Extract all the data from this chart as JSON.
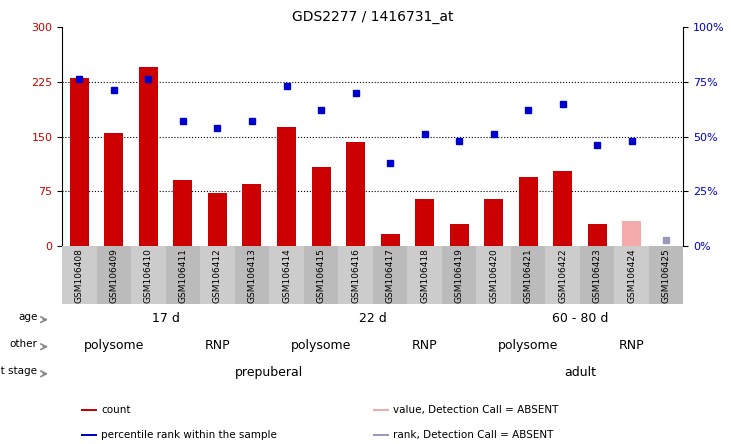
{
  "title": "GDS2277 / 1416731_at",
  "samples": [
    "GSM106408",
    "GSM106409",
    "GSM106410",
    "GSM106411",
    "GSM106412",
    "GSM106413",
    "GSM106414",
    "GSM106415",
    "GSM106416",
    "GSM106417",
    "GSM106418",
    "GSM106419",
    "GSM106420",
    "GSM106421",
    "GSM106422",
    "GSM106423",
    "GSM106424",
    "GSM106425"
  ],
  "bar_values": [
    230,
    155,
    245,
    90,
    73,
    85,
    163,
    108,
    143,
    17,
    65,
    30,
    65,
    95,
    103,
    30,
    35,
    null
  ],
  "bar_absent": [
    false,
    false,
    false,
    false,
    false,
    false,
    false,
    false,
    false,
    false,
    false,
    false,
    false,
    false,
    false,
    false,
    true,
    true
  ],
  "bar_color_normal": "#cc0000",
  "bar_color_absent": "#f4aaaa",
  "dot_ranks": [
    76,
    71,
    76,
    57,
    54,
    57,
    73,
    62,
    70,
    38,
    51,
    48,
    51,
    62,
    65,
    46,
    48,
    3
  ],
  "dot_absent": [
    false,
    false,
    false,
    false,
    false,
    false,
    false,
    false,
    false,
    false,
    false,
    false,
    false,
    false,
    false,
    false,
    false,
    true
  ],
  "dot_color_normal": "#0000cc",
  "dot_color_absent": "#9999bb",
  "ylim_left": [
    0,
    300
  ],
  "ylim_right": [
    0,
    100
  ],
  "yticks_left": [
    0,
    75,
    150,
    225,
    300
  ],
  "ytick_labels_left": [
    "0",
    "75",
    "150",
    "225",
    "300"
  ],
  "yticks_right": [
    0,
    25,
    50,
    75,
    100
  ],
  "ytick_labels_right": [
    "0%",
    "25%",
    "50%",
    "75%",
    "100%"
  ],
  "hlines": [
    75,
    150,
    225
  ],
  "age_groups": [
    {
      "label": "17 d",
      "start": 0,
      "end": 5,
      "color": "#aaddaa"
    },
    {
      "label": "22 d",
      "start": 6,
      "end": 11,
      "color": "#66cc66"
    },
    {
      "label": "60 - 80 d",
      "start": 12,
      "end": 17,
      "color": "#44bb44"
    }
  ],
  "other_groups": [
    {
      "label": "polysome",
      "start": 0,
      "end": 2,
      "color": "#9999dd"
    },
    {
      "label": "RNP",
      "start": 3,
      "end": 5,
      "color": "#7777bb"
    },
    {
      "label": "polysome",
      "start": 6,
      "end": 8,
      "color": "#9999dd"
    },
    {
      "label": "RNP",
      "start": 9,
      "end": 11,
      "color": "#7777bb"
    },
    {
      "label": "polysome",
      "start": 12,
      "end": 14,
      "color": "#9999dd"
    },
    {
      "label": "RNP",
      "start": 15,
      "end": 17,
      "color": "#7777bb"
    }
  ],
  "stage_groups": [
    {
      "label": "prepuberal",
      "start": 0,
      "end": 11,
      "color": "#f4aaaa"
    },
    {
      "label": "adult",
      "start": 12,
      "end": 17,
      "color": "#cc7766"
    }
  ],
  "legend_items": [
    {
      "label": "count",
      "color": "#cc0000"
    },
    {
      "label": "percentile rank within the sample",
      "color": "#0000cc"
    },
    {
      "label": "value, Detection Call = ABSENT",
      "color": "#f4aaaa"
    },
    {
      "label": "rank, Detection Call = ABSENT",
      "color": "#9999bb"
    }
  ],
  "background_color": "#ffffff",
  "plot_bg": "#ffffff",
  "ticklabel_bg": "#cccccc"
}
